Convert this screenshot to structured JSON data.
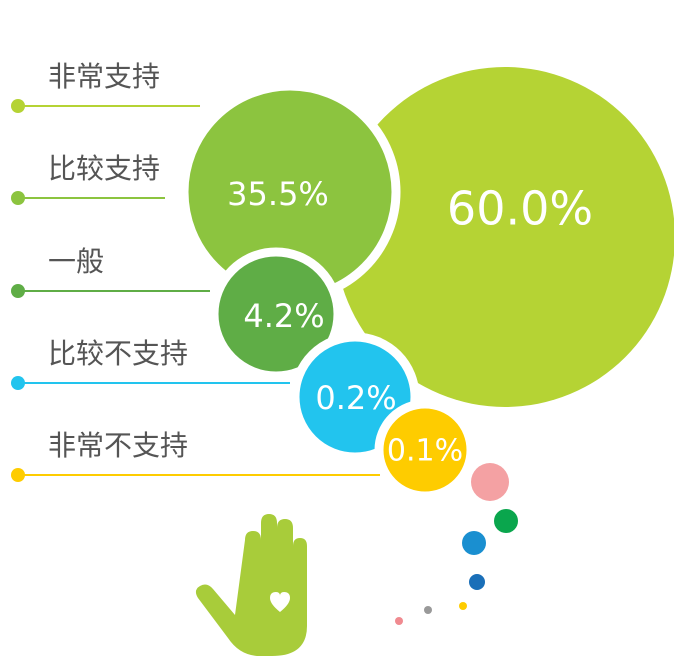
{
  "chart_data": {
    "type": "bubble",
    "categories": [
      "非常支持",
      "比较支持",
      "一般",
      "比较不支持",
      "非常不支持"
    ],
    "values": [
      60.0,
      35.5,
      4.2,
      0.2,
      0.1
    ],
    "value_labels": [
      "60.0%",
      "35.5%",
      "4.2%",
      "0.2%",
      "0.1%"
    ],
    "colors": [
      "#b5d334",
      "#8cc43f",
      "#5fad46",
      "#22c4ee",
      "#fecc00"
    ]
  }
}
